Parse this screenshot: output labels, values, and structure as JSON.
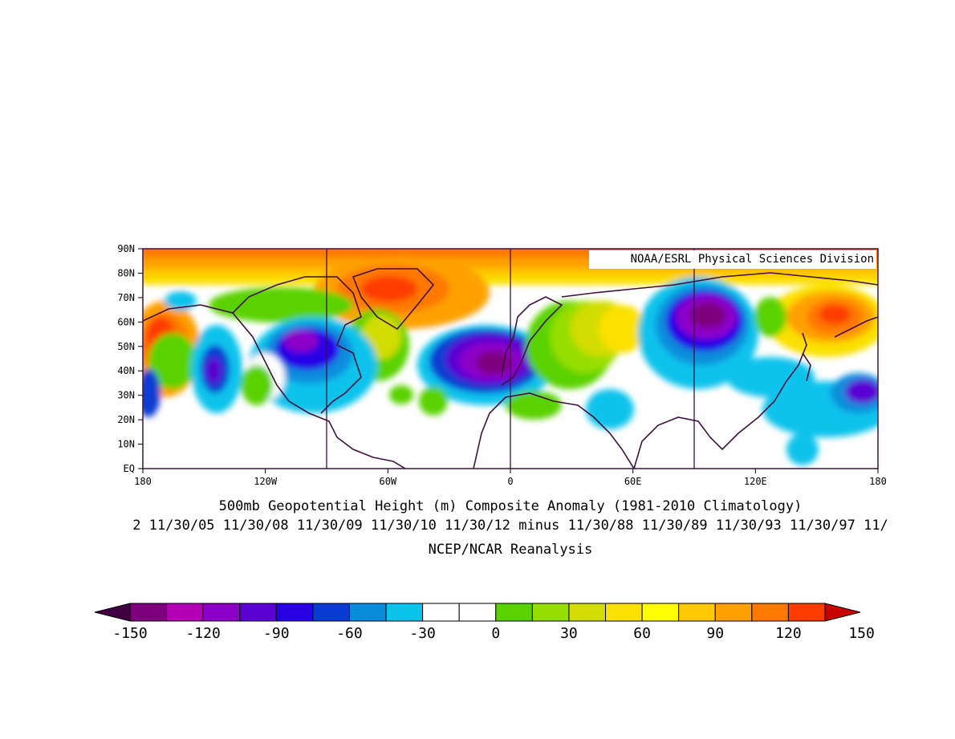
{
  "credit": "NOAA/ESRL Physical Sciences Division",
  "titles": {
    "line1": "500mb Geopotential Height (m) Composite Anomaly (1981-2010 Climatology)",
    "line2": "2 11/30/05 11/30/08 11/30/09 11/30/10 11/30/12 minus 11/30/88 11/30/89 11/30/93 11/30/97 11/",
    "line3": "NCEP/NCAR Reanalysis"
  },
  "axes": {
    "lat_labels": [
      "90N",
      "80N",
      "70N",
      "60N",
      "50N",
      "40N",
      "30N",
      "20N",
      "10N",
      "EQ"
    ],
    "lon_labels": [
      "180",
      "120W",
      "60W",
      "0",
      "60E",
      "120E",
      "180"
    ]
  },
  "colorbar": {
    "colors": [
      "#400040",
      "#7d007d",
      "#b400b4",
      "#8c00c8",
      "#5a00d2",
      "#2800e6",
      "#0a3cd2",
      "#0a8cdc",
      "#0ac3eb",
      "#ffffff",
      "#ffffff",
      "#5ad200",
      "#96de00",
      "#d2dc00",
      "#fae100",
      "#ffff00",
      "#ffc800",
      "#ffa000",
      "#ff7800",
      "#ff3c00",
      "#c80000"
    ],
    "labels": [
      "-150",
      "-120",
      "-90",
      "-60",
      "-30",
      "0",
      "30",
      "60",
      "90",
      "120",
      "150"
    ]
  },
  "map_features": [
    {
      "name": "arctic-positive-band",
      "level": "60 to 120 m"
    },
    {
      "name": "greenland-high",
      "level": "120 m"
    },
    {
      "name": "north-atlantic-low",
      "level": "-150 m"
    },
    {
      "name": "siberia-low",
      "level": "-150 m"
    },
    {
      "name": "north-america-low",
      "level": "-90 m"
    },
    {
      "name": "northwest-pacific-high",
      "level": "150 m"
    },
    {
      "name": "east-pacific-high",
      "level": "120 m"
    },
    {
      "name": "west-pacific-low",
      "level": "-90 m"
    },
    {
      "name": "europe-positive",
      "level": "30 to 60 m"
    }
  ]
}
